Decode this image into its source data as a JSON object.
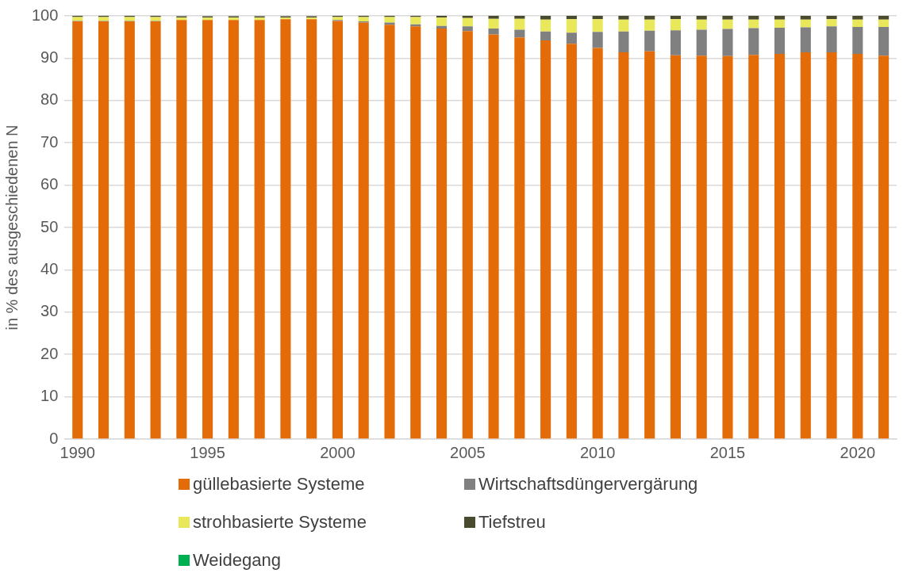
{
  "chart_data": {
    "type": "bar",
    "stacked": true,
    "ylabel": "in % des ausgeschiedenen N",
    "categories": [
      "1990",
      null,
      null,
      null,
      null,
      "1995",
      null,
      null,
      null,
      null,
      "2000",
      null,
      null,
      null,
      null,
      "2005",
      null,
      null,
      null,
      null,
      "2010",
      null,
      null,
      null,
      null,
      "2015",
      null,
      null,
      null,
      null,
      "2020",
      null
    ],
    "series": [
      {
        "name": "güllebasierte Systeme",
        "color": "#e36c09",
        "values": [
          98.7,
          98.7,
          98.7,
          98.7,
          99.0,
          99.0,
          99.0,
          99.0,
          99.2,
          99.2,
          98.8,
          98.4,
          97.9,
          97.5,
          97.0,
          96.4,
          95.6,
          94.9,
          94.2,
          93.4,
          92.4,
          91.4,
          91.6,
          90.7,
          90.6,
          90.5,
          90.8,
          91.0,
          91.4,
          91.4,
          91.0,
          90.6
        ]
      },
      {
        "name": "Wirtschaftsdüngervergärung",
        "color": "#808080",
        "values": [
          0.1,
          0.1,
          0.1,
          0.1,
          null,
          null,
          null,
          null,
          null,
          null,
          0.2,
          0.3,
          0.5,
          0.5,
          0.6,
          1.1,
          1.4,
          1.8,
          2.1,
          2.6,
          3.8,
          4.9,
          4.9,
          5.9,
          6.1,
          6.4,
          6.3,
          6.2,
          5.9,
          6.1,
          6.4,
          6.8
        ]
      },
      {
        "name": "strohbasierte Systeme",
        "color": "#e8e85a",
        "values": [
          0.9,
          0.9,
          0.9,
          0.9,
          0.6,
          0.6,
          0.6,
          0.6,
          0.4,
          0.4,
          0.7,
          1.0,
          1.3,
          1.7,
          2.0,
          2.0,
          2.3,
          2.6,
          2.8,
          3.2,
          3.0,
          2.8,
          2.6,
          2.6,
          2.4,
          2.2,
          2.0,
          1.9,
          1.8,
          1.7,
          1.7,
          1.7
        ]
      },
      {
        "name": "Tiefstreu",
        "color": "#4a4a2e",
        "values": [
          0.3,
          0.3,
          0.3,
          0.3,
          0.3,
          0.3,
          0.3,
          0.3,
          0.3,
          0.3,
          0.3,
          0.3,
          0.3,
          0.3,
          0.4,
          0.6,
          0.7,
          0.7,
          0.9,
          0.9,
          0.9,
          0.9,
          0.9,
          0.9,
          0.9,
          0.9,
          0.9,
          0.9,
          0.9,
          0.9,
          0.9,
          0.9
        ]
      },
      {
        "name": "Weidegang",
        "color": "#00b050",
        "values": [
          0,
          0,
          0,
          0,
          0,
          0,
          0,
          0,
          0,
          0,
          0,
          0,
          0,
          0,
          0,
          0,
          0,
          0,
          0,
          0,
          0,
          0,
          0,
          0,
          0,
          0,
          0,
          0,
          0,
          0,
          0,
          0
        ]
      }
    ],
    "ylim": [
      0,
      100
    ],
    "yticks": [
      0,
      10,
      20,
      30,
      40,
      50,
      60,
      70,
      80,
      90,
      100
    ],
    "grid": "y",
    "legend": "bottom"
  }
}
